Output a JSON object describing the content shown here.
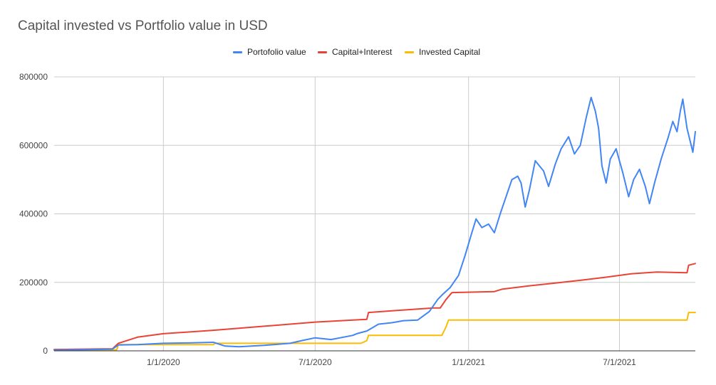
{
  "chart_data": {
    "type": "line",
    "title": "Capital invested vs Portfolio value in USD",
    "xlabel": "",
    "ylabel": "",
    "legend_position": "top-center",
    "grid": true,
    "ylim": [
      0,
      800000
    ],
    "yticks": [
      {
        "value": 0,
        "label": "0"
      },
      {
        "value": 200000,
        "label": "200000"
      },
      {
        "value": 400000,
        "label": "400000"
      },
      {
        "value": 600000,
        "label": "600000"
      },
      {
        "value": 800000,
        "label": "800000"
      }
    ],
    "xlim": [
      "2019-08-23",
      "2021-09-30"
    ],
    "xticks": [
      {
        "value": "2020-01-01",
        "label": "1/1/2020"
      },
      {
        "value": "2020-07-01",
        "label": "7/1/2020"
      },
      {
        "value": "2021-01-01",
        "label": "1/1/2021"
      },
      {
        "value": "2021-07-01",
        "label": "7/1/2021"
      }
    ],
    "series": [
      {
        "name": "Portofolio value",
        "color": "#4285f4",
        "points": [
          [
            "2019-08-23",
            2000
          ],
          [
            "2019-09-15",
            3000
          ],
          [
            "2019-10-15",
            4000
          ],
          [
            "2019-11-01",
            5000
          ],
          [
            "2019-11-08",
            17000
          ],
          [
            "2019-12-01",
            18000
          ],
          [
            "2020-01-01",
            22000
          ],
          [
            "2020-02-01",
            23000
          ],
          [
            "2020-03-01",
            25000
          ],
          [
            "2020-03-15",
            14000
          ],
          [
            "2020-04-01",
            12000
          ],
          [
            "2020-05-01",
            16000
          ],
          [
            "2020-06-01",
            22000
          ],
          [
            "2020-06-15",
            30000
          ],
          [
            "2020-07-01",
            38000
          ],
          [
            "2020-07-20",
            33000
          ],
          [
            "2020-08-15",
            45000
          ],
          [
            "2020-08-20",
            50000
          ],
          [
            "2020-09-01",
            58000
          ],
          [
            "2020-09-15",
            78000
          ],
          [
            "2020-10-01",
            82000
          ],
          [
            "2020-10-15",
            88000
          ],
          [
            "2020-11-01",
            90000
          ],
          [
            "2020-11-15",
            115000
          ],
          [
            "2020-11-25",
            150000
          ],
          [
            "2020-12-01",
            165000
          ],
          [
            "2020-12-10",
            185000
          ],
          [
            "2020-12-20",
            220000
          ],
          [
            "2020-12-28",
            280000
          ],
          [
            "2021-01-05",
            345000
          ],
          [
            "2021-01-10",
            385000
          ],
          [
            "2021-01-17",
            360000
          ],
          [
            "2021-01-25",
            370000
          ],
          [
            "2021-02-01",
            345000
          ],
          [
            "2021-02-08",
            400000
          ],
          [
            "2021-02-15",
            450000
          ],
          [
            "2021-02-22",
            500000
          ],
          [
            "2021-03-01",
            510000
          ],
          [
            "2021-03-05",
            490000
          ],
          [
            "2021-03-10",
            420000
          ],
          [
            "2021-03-15",
            470000
          ],
          [
            "2021-03-22",
            555000
          ],
          [
            "2021-04-01",
            525000
          ],
          [
            "2021-04-07",
            480000
          ],
          [
            "2021-04-15",
            545000
          ],
          [
            "2021-04-22",
            590000
          ],
          [
            "2021-05-01",
            625000
          ],
          [
            "2021-05-08",
            575000
          ],
          [
            "2021-05-15",
            600000
          ],
          [
            "2021-05-22",
            680000
          ],
          [
            "2021-05-28",
            740000
          ],
          [
            "2021-06-02",
            700000
          ],
          [
            "2021-06-06",
            650000
          ],
          [
            "2021-06-10",
            540000
          ],
          [
            "2021-06-15",
            490000
          ],
          [
            "2021-06-20",
            560000
          ],
          [
            "2021-06-27",
            590000
          ],
          [
            "2021-07-05",
            520000
          ],
          [
            "2021-07-12",
            450000
          ],
          [
            "2021-07-18",
            500000
          ],
          [
            "2021-07-25",
            530000
          ],
          [
            "2021-08-01",
            480000
          ],
          [
            "2021-08-06",
            430000
          ],
          [
            "2021-08-12",
            490000
          ],
          [
            "2021-08-20",
            560000
          ],
          [
            "2021-08-28",
            620000
          ],
          [
            "2021-09-03",
            670000
          ],
          [
            "2021-09-08",
            640000
          ],
          [
            "2021-09-12",
            700000
          ],
          [
            "2021-09-15",
            735000
          ],
          [
            "2021-09-20",
            650000
          ],
          [
            "2021-09-24",
            610000
          ],
          [
            "2021-09-27",
            580000
          ],
          [
            "2021-09-30",
            640000
          ]
        ]
      },
      {
        "name": "Capital+Interest",
        "color": "#ea4335",
        "points": [
          [
            "2019-08-23",
            4000
          ],
          [
            "2019-11-01",
            6000
          ],
          [
            "2019-11-08",
            22000
          ],
          [
            "2019-12-01",
            40000
          ],
          [
            "2020-01-01",
            50000
          ],
          [
            "2020-03-01",
            60000
          ],
          [
            "2020-05-01",
            72000
          ],
          [
            "2020-07-01",
            84000
          ],
          [
            "2020-09-01",
            92000
          ],
          [
            "2020-09-03",
            112000
          ],
          [
            "2020-10-01",
            117000
          ],
          [
            "2020-11-20",
            125000
          ],
          [
            "2020-11-28",
            125000
          ],
          [
            "2020-12-05",
            150000
          ],
          [
            "2020-12-12",
            170000
          ],
          [
            "2021-02-01",
            173000
          ],
          [
            "2021-02-10",
            180000
          ],
          [
            "2021-03-15",
            190000
          ],
          [
            "2021-04-15",
            198000
          ],
          [
            "2021-05-15",
            206000
          ],
          [
            "2021-06-15",
            215000
          ],
          [
            "2021-07-15",
            225000
          ],
          [
            "2021-08-15",
            230000
          ],
          [
            "2021-09-20",
            228000
          ],
          [
            "2021-09-22",
            250000
          ],
          [
            "2021-09-30",
            255000
          ]
        ]
      },
      {
        "name": "Invested Capital",
        "color": "#fbbc04",
        "points": [
          [
            "2019-08-23",
            3000
          ],
          [
            "2019-11-06",
            3000
          ],
          [
            "2019-11-08",
            18000
          ],
          [
            "2020-03-01",
            18000
          ],
          [
            "2020-03-03",
            22000
          ],
          [
            "2020-08-25",
            22000
          ],
          [
            "2020-09-01",
            30000
          ],
          [
            "2020-09-03",
            45000
          ],
          [
            "2020-11-30",
            45000
          ],
          [
            "2020-12-05",
            70000
          ],
          [
            "2020-12-08",
            90000
          ],
          [
            "2021-09-20",
            90000
          ],
          [
            "2021-09-22",
            112000
          ],
          [
            "2021-09-30",
            112000
          ]
        ]
      }
    ]
  }
}
